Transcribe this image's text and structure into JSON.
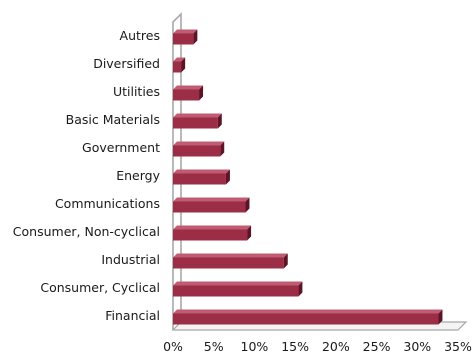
{
  "chart_data": {
    "type": "bar",
    "orientation": "horizontal",
    "style": "3d",
    "categories": [
      "Autres",
      "Diversified",
      "Utilities",
      "Basic Materials",
      "Government",
      "Energy",
      "Communications",
      "Consumer, Non-cyclical",
      "Industrial",
      "Consumer, Cyclical",
      "Financial"
    ],
    "values": [
      2.5,
      1.0,
      3.2,
      5.5,
      5.8,
      6.5,
      8.9,
      9.1,
      13.6,
      15.4,
      32.6
    ],
    "value_unit": "%",
    "xlim": [
      0,
      35
    ],
    "xticks": [
      "0%",
      "5%",
      "10%",
      "15%",
      "20%",
      "25%",
      "30%",
      "35%"
    ],
    "title": "",
    "xlabel": "",
    "ylabel": "",
    "grid": false,
    "colors": {
      "bar_front": "#9b2d46",
      "bar_top": "#c05c72",
      "bar_side": "#5e1426",
      "axis": "#a8a8a8"
    }
  }
}
